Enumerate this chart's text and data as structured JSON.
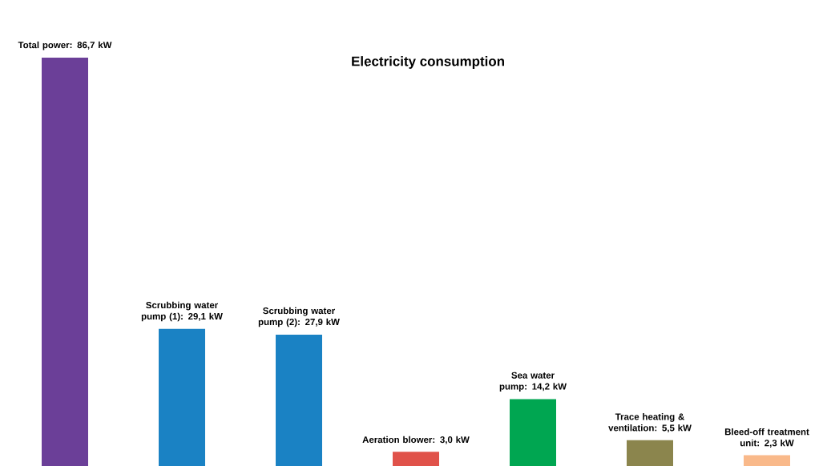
{
  "chart_data": {
    "type": "bar",
    "title": "Electricity consumption",
    "categories": [
      null,
      null,
      null,
      null,
      null,
      null,
      null
    ],
    "values": [
      86.7,
      29.1,
      27.9,
      3.0,
      14.2,
      5.5,
      2.3
    ],
    "value_labels": [
      "Total power: 86,7 kW",
      "Scrubbing water pump (1): 29,1 kW",
      "Scrubbing water pump (2): 27,9 kW",
      "Aeration blower: 3,0 kW",
      "Sea water pump: 14,2 kW",
      "Trace heating & ventilation: 5,5 kW",
      "Bleed-off treatment unit: 2,3 kW"
    ],
    "colors": [
      "#6b3f98",
      "#1a82c4",
      "#1a82c4",
      "#e0524a",
      "#00a651",
      "#8b854d",
      "#f9b98a"
    ]
  }
}
